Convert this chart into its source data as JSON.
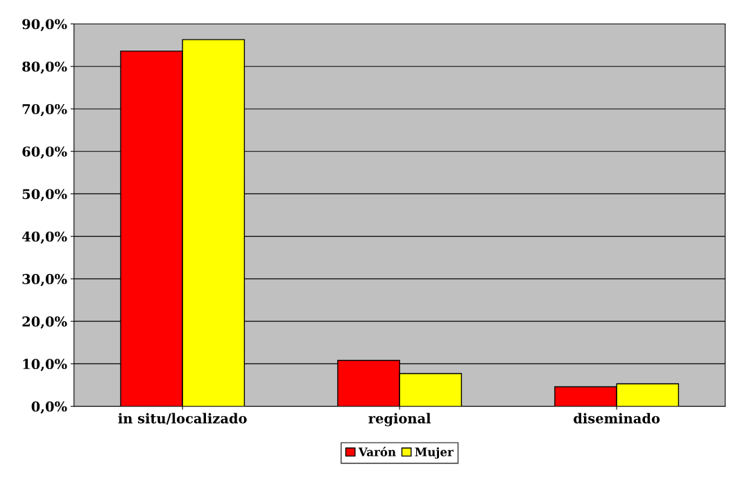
{
  "chart_data": {
    "type": "bar",
    "categories": [
      "in situ/localizado",
      "regional",
      "diseminado"
    ],
    "series": [
      {
        "name": "Varón",
        "color": "#ff0000",
        "values": [
          83.6,
          10.8,
          4.6
        ]
      },
      {
        "name": "Mujer",
        "color": "#ffff00",
        "values": [
          86.3,
          7.7,
          5.3
        ]
      }
    ],
    "ylim": [
      0,
      90
    ],
    "yticks": [
      {
        "value": 0,
        "label": "0,0%"
      },
      {
        "value": 10,
        "label": "10,0%"
      },
      {
        "value": 20,
        "label": "20,0%"
      },
      {
        "value": 30,
        "label": "30,0%"
      },
      {
        "value": 40,
        "label": "40,0%"
      },
      {
        "value": 50,
        "label": "50,0%"
      },
      {
        "value": 60,
        "label": "60,0%"
      },
      {
        "value": 70,
        "label": "70,0%"
      },
      {
        "value": 80,
        "label": "80,0%"
      },
      {
        "value": 90,
        "label": "90,0%"
      }
    ],
    "grid": "y",
    "legend": "bottom"
  }
}
